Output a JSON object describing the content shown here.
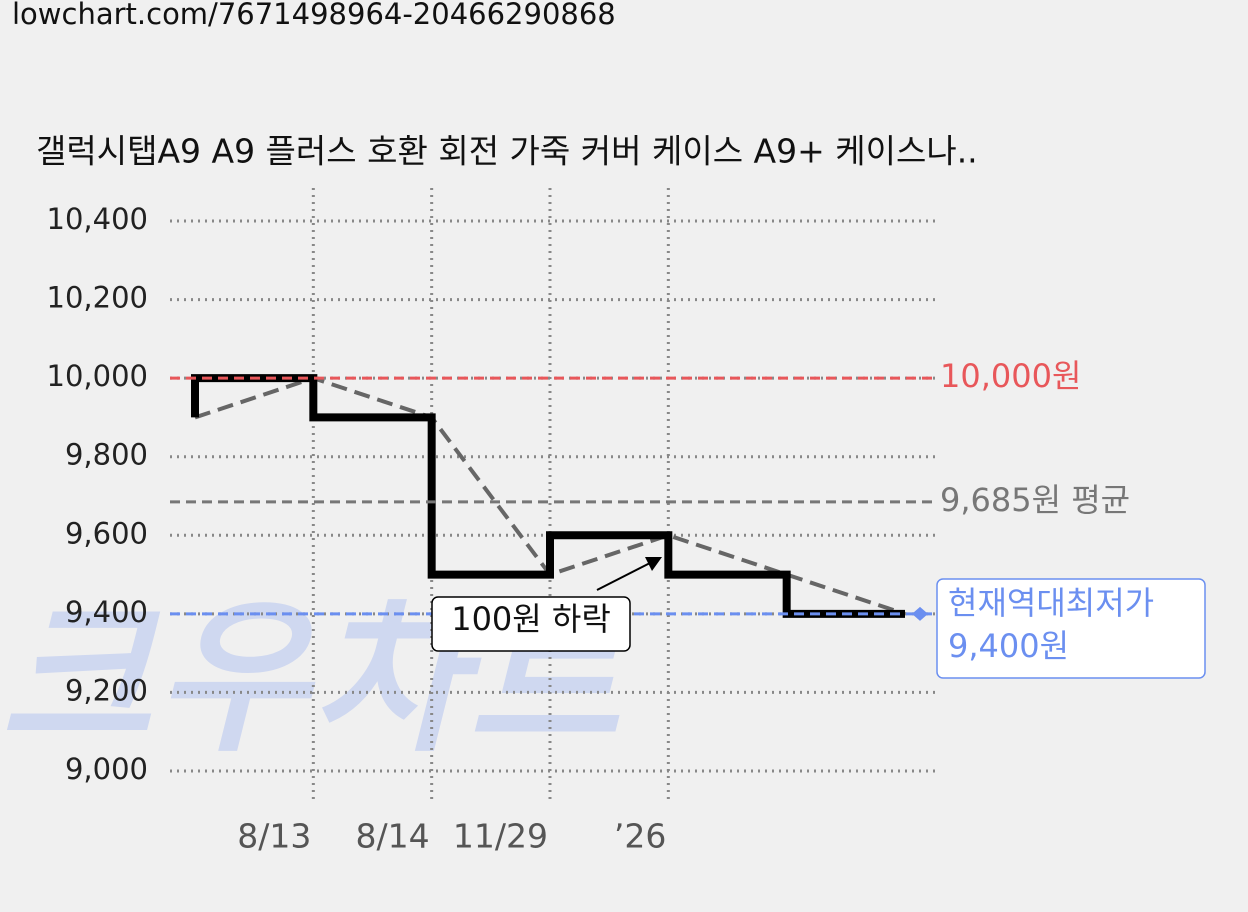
{
  "url": "lowchart.com/7671498964-20466290868",
  "chart_data": {
    "type": "line",
    "title": "갤럭시탭A9 A9 플러스 호환 회전 가죽 커버 케이스 A9+ 케이스나..",
    "watermark": "크우차트",
    "categories": [
      null,
      "8/13",
      "8/14",
      "11/29",
      "’26",
      null,
      null
    ],
    "values": [
      9900,
      10000,
      9900,
      9500,
      9600,
      9500,
      9400
    ],
    "color": "#000000",
    "trend_color": "#666666",
    "ylim": [
      9000,
      10400
    ],
    "yticks": [
      {
        "value": 9000,
        "label": "9,000"
      },
      {
        "value": 9200,
        "label": "9,200"
      },
      {
        "value": 9400,
        "label": "9,400"
      },
      {
        "value": 9600,
        "label": "9,600"
      },
      {
        "value": 9800,
        "label": "9,800"
      },
      {
        "value": 10000,
        "label": "10,000"
      },
      {
        "value": 10200,
        "label": "10,200"
      },
      {
        "value": 10400,
        "label": "10,400"
      }
    ],
    "grid": true,
    "max_line": {
      "value": 10000,
      "label": "10,000원",
      "color": "#e8575a"
    },
    "avg_line": {
      "value": 9685,
      "label": "9,685원 평균",
      "color": "#777777"
    },
    "min_line": {
      "value": 9400,
      "title": "현재역대최저가",
      "label": "9,400원",
      "color": "#6b8ff0"
    },
    "annotation": "100원 하락"
  }
}
